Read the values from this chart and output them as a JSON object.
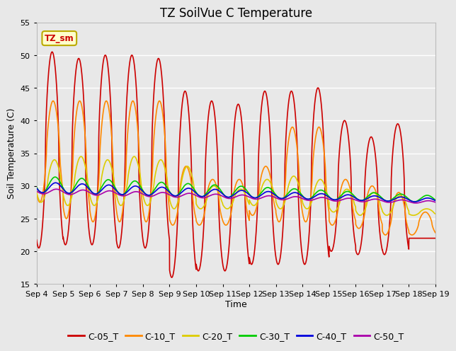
{
  "title": "TZ SoilVue C Temperature",
  "xlabel": "Time",
  "ylabel": "Soil Temperature (C)",
  "ylim": [
    15,
    55
  ],
  "x_tick_labels": [
    "Sep 4",
    "Sep 5",
    "Sep 6",
    "Sep 7",
    "Sep 8",
    "Sep 9",
    "Sep 10",
    "Sep 11",
    "Sep 12",
    "Sep 13",
    "Sep 14",
    "Sep 15",
    "Sep 16",
    "Sep 17",
    "Sep 18",
    "Sep 19"
  ],
  "annotation_label": "TZ_sm",
  "annotation_bbox_facecolor": "#ffffcc",
  "annotation_bbox_edgecolor": "#bbaa00",
  "fig_facecolor": "#e8e8e8",
  "plot_bg_color": "#e8e8e8",
  "grid_color": "#ffffff",
  "series": [
    {
      "name": "C-05_T",
      "color": "#cc0000",
      "linewidth": 1.2
    },
    {
      "name": "C-10_T",
      "color": "#ff8800",
      "linewidth": 1.2
    },
    {
      "name": "C-20_T",
      "color": "#ddcc00",
      "linewidth": 1.2
    },
    {
      "name": "C-30_T",
      "color": "#00cc00",
      "linewidth": 1.2
    },
    {
      "name": "C-40_T",
      "color": "#0000dd",
      "linewidth": 1.2
    },
    {
      "name": "C-50_T",
      "color": "#aa00aa",
      "linewidth": 1.2
    }
  ],
  "title_fontsize": 12,
  "axis_label_fontsize": 9,
  "tick_fontsize": 8,
  "legend_fontsize": 9
}
